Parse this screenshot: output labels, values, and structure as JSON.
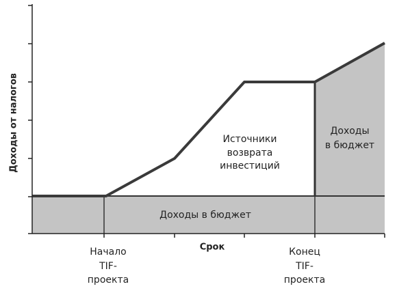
{
  "y_axis_label": "Доходы от налогов",
  "x_axis_label": "Срок",
  "investment_sources": [
    "Источники",
    "возврата",
    "инвестиций"
  ],
  "budget_revenue_after": [
    "Доходы",
    "в бюджет"
  ],
  "budget_revenue_base": "Доходы в бюджет",
  "tif_start": [
    "Начало",
    "TIF-",
    "проекта"
  ],
  "tif_end": [
    "Конец",
    "TIF-",
    "проекта"
  ]
}
